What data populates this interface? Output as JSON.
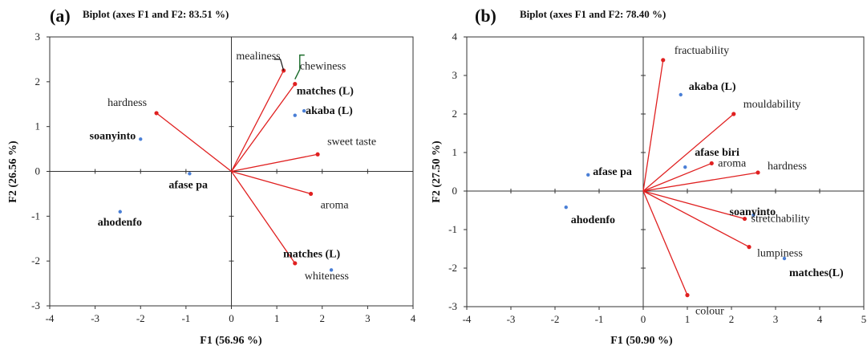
{
  "chart_data": [
    {
      "type": "scatter",
      "panel_label": "(a)",
      "title": "Biplot (axes F1 and F2: 83.51 %)",
      "xlabel": "F1 (56.96 %)",
      "ylabel": "F2 (26.56 %)",
      "xlim": [
        -4,
        4
      ],
      "ylim": [
        -3,
        3
      ],
      "xticks": [
        -4,
        -3,
        -2,
        -1,
        0,
        1,
        2,
        3,
        4
      ],
      "yticks": [
        -3,
        -2,
        -1,
        0,
        1,
        2,
        3
      ],
      "variables": [
        {
          "label": "mealiness",
          "x": 1.15,
          "y": 2.25
        },
        {
          "label": "chewiness",
          "x": 1.4,
          "y": 1.95
        },
        {
          "label": "hardness",
          "x": -1.65,
          "y": 1.3
        },
        {
          "label": "sweet taste",
          "x": 1.9,
          "y": 0.38
        },
        {
          "label": "aroma",
          "x": 1.75,
          "y": -0.5
        },
        {
          "label": "whiteness",
          "x": 1.4,
          "y": -2.05
        }
      ],
      "observations": [
        {
          "label": "matches (L)",
          "x": 1.4,
          "y": 1.25
        },
        {
          "label": "akaba (L)",
          "x": 1.6,
          "y": 1.35
        },
        {
          "label": "soanyinto",
          "x": -2.0,
          "y": 0.72
        },
        {
          "label": "afase pa",
          "x": -0.92,
          "y": -0.05
        },
        {
          "label": "ahodenfo",
          "x": -2.45,
          "y": -0.9
        },
        {
          "label": "matches (L)",
          "x": 2.2,
          "y": -2.2
        }
      ],
      "colors": {
        "vectors": "#e02020",
        "points": "#4a7fd6",
        "axes": "#333333"
      }
    },
    {
      "type": "scatter",
      "panel_label": "(b)",
      "title": "Biplot (axes F1 and F2: 78.40 %)",
      "xlabel": "F1 (50.90 %)",
      "ylabel": "F2 (27.50 %)",
      "xlim": [
        -4,
        5
      ],
      "ylim": [
        -3,
        4
      ],
      "xticks": [
        -4,
        -3,
        -2,
        -1,
        0,
        1,
        2,
        3,
        4,
        5
      ],
      "yticks": [
        -3,
        -2,
        -1,
        0,
        1,
        2,
        3,
        4
      ],
      "variables": [
        {
          "label": "fractuability",
          "x": 0.45,
          "y": 3.4
        },
        {
          "label": "mouldability",
          "x": 2.05,
          "y": 2.0
        },
        {
          "label": "aroma",
          "x": 1.55,
          "y": 0.72
        },
        {
          "label": "hardness",
          "x": 2.6,
          "y": 0.48
        },
        {
          "label": "stretchability",
          "x": 2.3,
          "y": -0.72
        },
        {
          "label": "lumpiness",
          "x": 2.4,
          "y": -1.45
        },
        {
          "label": "colour",
          "x": 1.0,
          "y": -2.7
        }
      ],
      "observations": [
        {
          "label": "akaba (L)",
          "x": 0.85,
          "y": 2.5
        },
        {
          "label": "afase biri",
          "x": 0.95,
          "y": 0.62
        },
        {
          "label": "afase pa",
          "x": -1.25,
          "y": 0.42
        },
        {
          "label": "ahodenfo",
          "x": -1.75,
          "y": -0.42
        },
        {
          "label": "soanyinto",
          "x": 2.5,
          "y": -0.62
        },
        {
          "label": "matches(L)",
          "x": 3.2,
          "y": -1.75
        }
      ],
      "colors": {
        "vectors": "#e02020",
        "points": "#4a7fd6",
        "axes": "#333333"
      }
    }
  ]
}
